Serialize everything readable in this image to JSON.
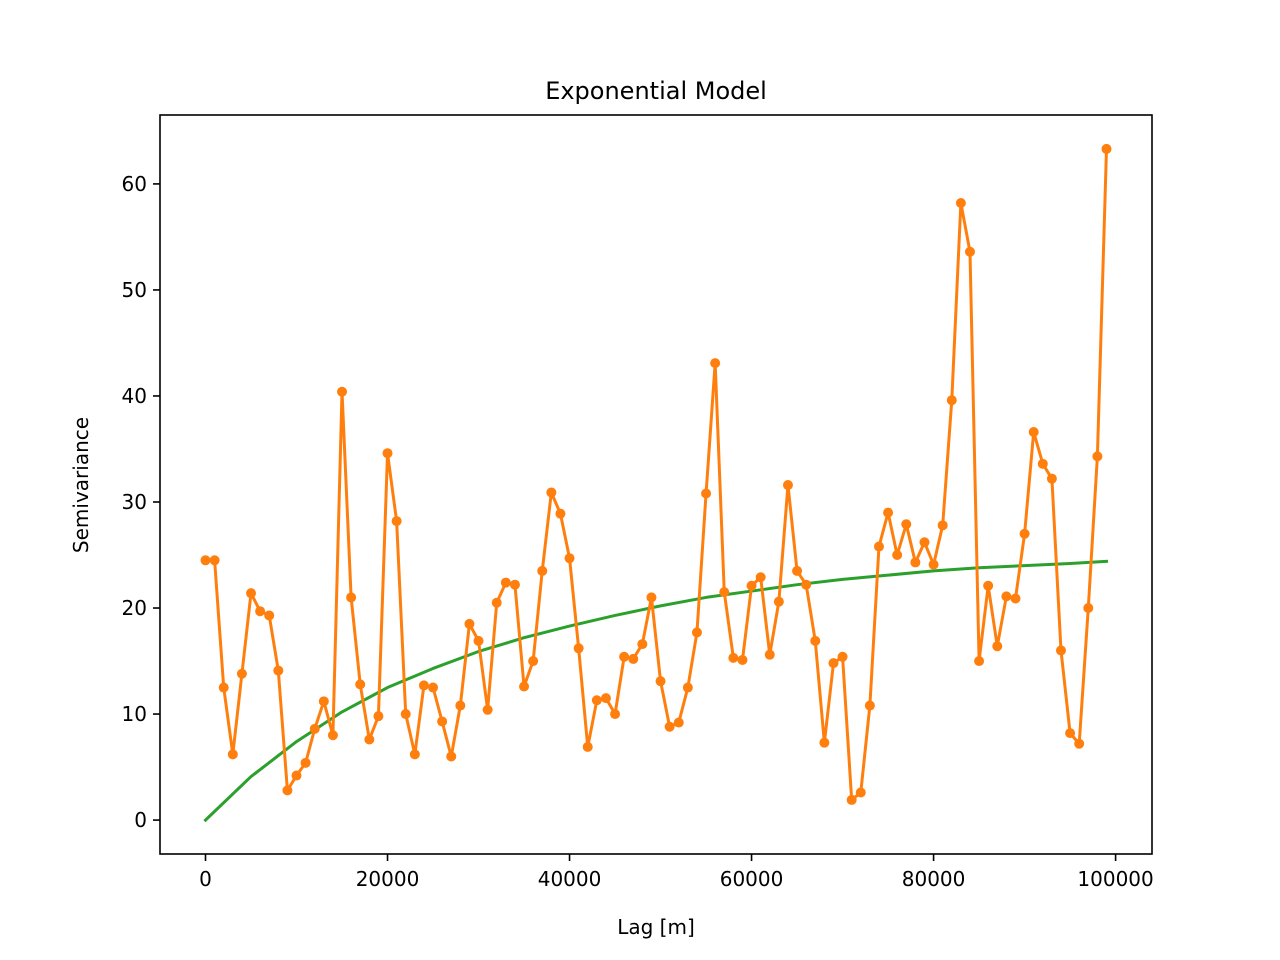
{
  "chart_data": {
    "type": "line",
    "title": "Exponential Model",
    "xlabel": "Lag [m]",
    "ylabel": "Semivariance",
    "xlim": [
      -5000,
      104000
    ],
    "ylim": [
      -3.2,
      66.5
    ],
    "xticks": [
      0,
      20000,
      40000,
      60000,
      80000,
      100000
    ],
    "xtick_labels": [
      "0",
      "20000",
      "40000",
      "60000",
      "80000",
      "100000"
    ],
    "yticks": [
      0,
      10,
      20,
      30,
      40,
      50,
      60
    ],
    "ytick_labels": [
      "0",
      "10",
      "20",
      "30",
      "40",
      "50",
      "60"
    ],
    "grid": false,
    "series": [
      {
        "color": "#ff7f0e",
        "marker": "circle",
        "x": [
          0,
          1000,
          2000,
          3000,
          4000,
          5000,
          6000,
          7000,
          8000,
          9000,
          10000,
          11000,
          12000,
          13000,
          14000,
          15000,
          16000,
          17000,
          18000,
          19000,
          20000,
          21000,
          22000,
          23000,
          24000,
          25000,
          26000,
          27000,
          28000,
          29000,
          30000,
          31000,
          32000,
          33000,
          34000,
          35000,
          36000,
          37000,
          38000,
          39000,
          40000,
          41000,
          42000,
          43000,
          44000,
          45000,
          46000,
          47000,
          48000,
          49000,
          50000,
          51000,
          52000,
          53000,
          54000,
          55000,
          56000,
          57000,
          58000,
          59000,
          60000,
          61000,
          62000,
          63000,
          64000,
          65000,
          66000,
          67000,
          68000,
          69000,
          70000,
          71000,
          72000,
          73000,
          74000,
          75000,
          76000,
          77000,
          78000,
          79000,
          80000,
          81000,
          82000,
          83000,
          84000,
          85000,
          86000,
          87000,
          88000,
          89000,
          90000,
          91000,
          92000,
          93000,
          94000,
          95000,
          96000,
          97000,
          98000,
          99000
        ],
        "y": [
          24.5,
          24.5,
          12.5,
          6.2,
          13.8,
          21.4,
          19.7,
          19.3,
          14.1,
          2.8,
          4.2,
          5.4,
          8.6,
          11.2,
          8.0,
          40.4,
          21.0,
          12.8,
          7.6,
          9.8,
          34.6,
          28.2,
          10.0,
          6.2,
          12.7,
          12.5,
          9.3,
          6.0,
          10.8,
          18.5,
          16.9,
          10.4,
          20.5,
          22.4,
          22.2,
          12.6,
          15.0,
          23.5,
          30.9,
          28.9,
          24.7,
          16.2,
          6.9,
          11.3,
          11.5,
          10.0,
          15.4,
          15.2,
          16.6,
          21.0,
          13.1,
          8.8,
          9.2,
          12.5,
          17.7,
          30.8,
          43.1,
          21.5,
          15.3,
          15.1,
          22.1,
          22.9,
          15.6,
          20.6,
          31.6,
          23.5,
          22.2,
          16.9,
          7.3,
          14.8,
          15.4,
          1.9,
          2.6,
          10.8,
          25.8,
          29.0,
          25.0,
          27.9,
          24.3,
          26.2,
          24.1,
          27.8,
          39.6,
          58.2,
          53.6,
          15.0,
          22.1,
          16.4,
          21.1,
          20.9,
          27.0,
          36.6,
          33.6,
          32.2,
          16.0,
          8.2,
          7.2,
          20.0,
          34.3,
          63.3
        ]
      },
      {
        "color": "#2ca02c",
        "marker": "none",
        "x": [
          0,
          5000,
          10000,
          15000,
          20000,
          25000,
          30000,
          35000,
          40000,
          45000,
          50000,
          55000,
          60000,
          65000,
          70000,
          75000,
          80000,
          85000,
          90000,
          95000,
          99000
        ],
        "y": [
          0,
          4.1,
          7.4,
          10.2,
          12.5,
          14.3,
          15.9,
          17.2,
          18.3,
          19.3,
          20.2,
          21.0,
          21.6,
          22.2,
          22.7,
          23.1,
          23.5,
          23.8,
          24.0,
          24.2,
          24.4
        ]
      }
    ]
  }
}
